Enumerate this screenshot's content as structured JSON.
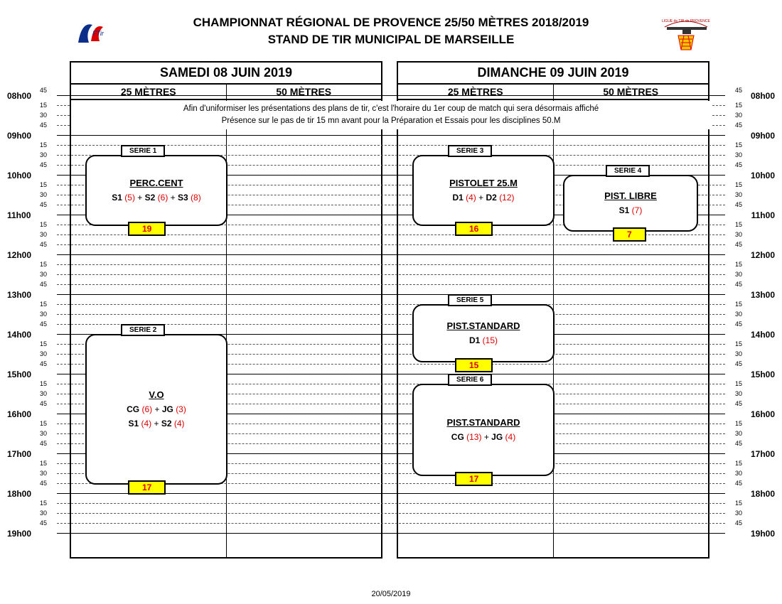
{
  "title_line1": "CHAMPIONNAT RÉGIONAL DE PROVENCE 25/50 MÈTRES 2018/2019",
  "title_line2": "STAND DE TIR MUNICIPAL DE MARSEILLE",
  "footer_date": "20/05/2019",
  "days": {
    "left": {
      "header": "SAMEDI 08 JUIN 2019",
      "col25": "25 MÈTRES",
      "col50": "50 MÈTRES"
    },
    "right": {
      "header": "DIMANCHE 09 JUIN 2019",
      "col25": "25 MÈTRES",
      "col50": "50 MÈTRES"
    }
  },
  "hours": [
    "08h00",
    "09h00",
    "10h00",
    "11h00",
    "12h00",
    "13h00",
    "14h00",
    "15h00",
    "16h00",
    "17h00",
    "18h00",
    "19h00"
  ],
  "quarters": [
    "15",
    "30",
    "45"
  ],
  "note_line1": "Afin d'uniformiser les présentations des plans de tir, c'est l'horaire du 1er coup de match qui sera désormais affiché",
  "note_line2": "Présence sur le pas de tir 15 mn avant pour la Préparation et Essais pour les disciplines 50.M",
  "series": {
    "s1": "SERIE 1",
    "s2": "SERIE 2",
    "s3": "SERIE 3",
    "s4": "SERIE 4",
    "s5": "SERIE 5",
    "s6": "SERIE 6"
  },
  "events": {
    "perc": {
      "title": "PERC.CENT",
      "line1": {
        "p1": "S1",
        "n1": "(5)",
        "p2": "S2",
        "n2": "(6)",
        "p3": "S3",
        "n3": "(8)"
      },
      "count": "19"
    },
    "vo": {
      "title": "V.O",
      "line1": {
        "p1": "CG",
        "n1": "(6)",
        "p2": "JG",
        "n2": "(3)"
      },
      "line2": {
        "p1": "S1",
        "n1": "(4)",
        "p2": "S2",
        "n2": "(4)"
      },
      "count": "17"
    },
    "p25": {
      "title": "PISTOLET 25.M",
      "line1": {
        "p1": "D1",
        "n1": "(4)",
        "p2": "D2",
        "n2": "(12)"
      },
      "count": "16"
    },
    "plibre": {
      "title": "PIST. LIBRE",
      "line1": {
        "p1": "S1",
        "n1": "(7)"
      },
      "count": "7"
    },
    "pstd1": {
      "title": "PIST.STANDARD",
      "line1": {
        "p1": "D1",
        "n1": "(15)"
      },
      "count": "15"
    },
    "pstd2": {
      "title": "PIST.STANDARD",
      "line1": {
        "p1": "CG",
        "n1": "(13)",
        "p2": "JG",
        "n2": "(4)"
      },
      "count": "17"
    }
  },
  "colors": {
    "badge_bg": "#ffff00",
    "red": "#d00000"
  }
}
